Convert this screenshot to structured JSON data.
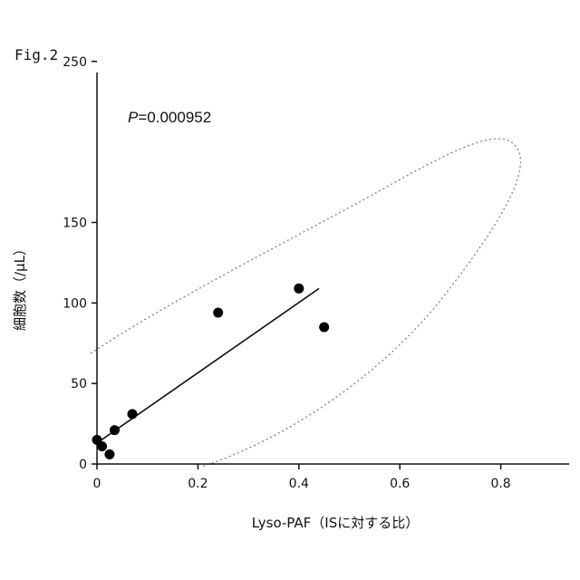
{
  "figure_label": "Fig.2",
  "chart_data": {
    "type": "scatter",
    "title": "",
    "xlabel": "Lyso-PAF（ISに対する比）",
    "ylabel": "細胞数（/μL）",
    "xlim": [
      0,
      0.9
    ],
    "ylim": [
      0,
      300
    ],
    "x_ticks": [
      "0",
      "0.2",
      "0.4",
      "0.6",
      "0.8"
    ],
    "y_ticks": [
      "0",
      "50",
      "100",
      "150",
      "250"
    ],
    "y_tick_values": [
      0,
      50,
      100,
      150,
      250
    ],
    "grid": false,
    "legend": "none",
    "annotation": {
      "italic": "P",
      "text": "=0.000952"
    },
    "series": [
      {
        "points": [
          {
            "x": 0.0,
            "y": 15
          },
          {
            "x": 0.01,
            "y": 11
          },
          {
            "x": 0.025,
            "y": 6
          },
          {
            "x": 0.035,
            "y": 21
          },
          {
            "x": 0.07,
            "y": 31
          },
          {
            "x": 0.24,
            "y": 94
          },
          {
            "x": 0.4,
            "y": 109
          },
          {
            "x": 0.45,
            "y": 85
          }
        ]
      }
    ],
    "fit_line": {
      "x": [
        0.0,
        0.44
      ],
      "y": [
        13,
        109
      ]
    },
    "confidence_ellipse": {
      "style": "dotted",
      "color": "#808080"
    }
  }
}
